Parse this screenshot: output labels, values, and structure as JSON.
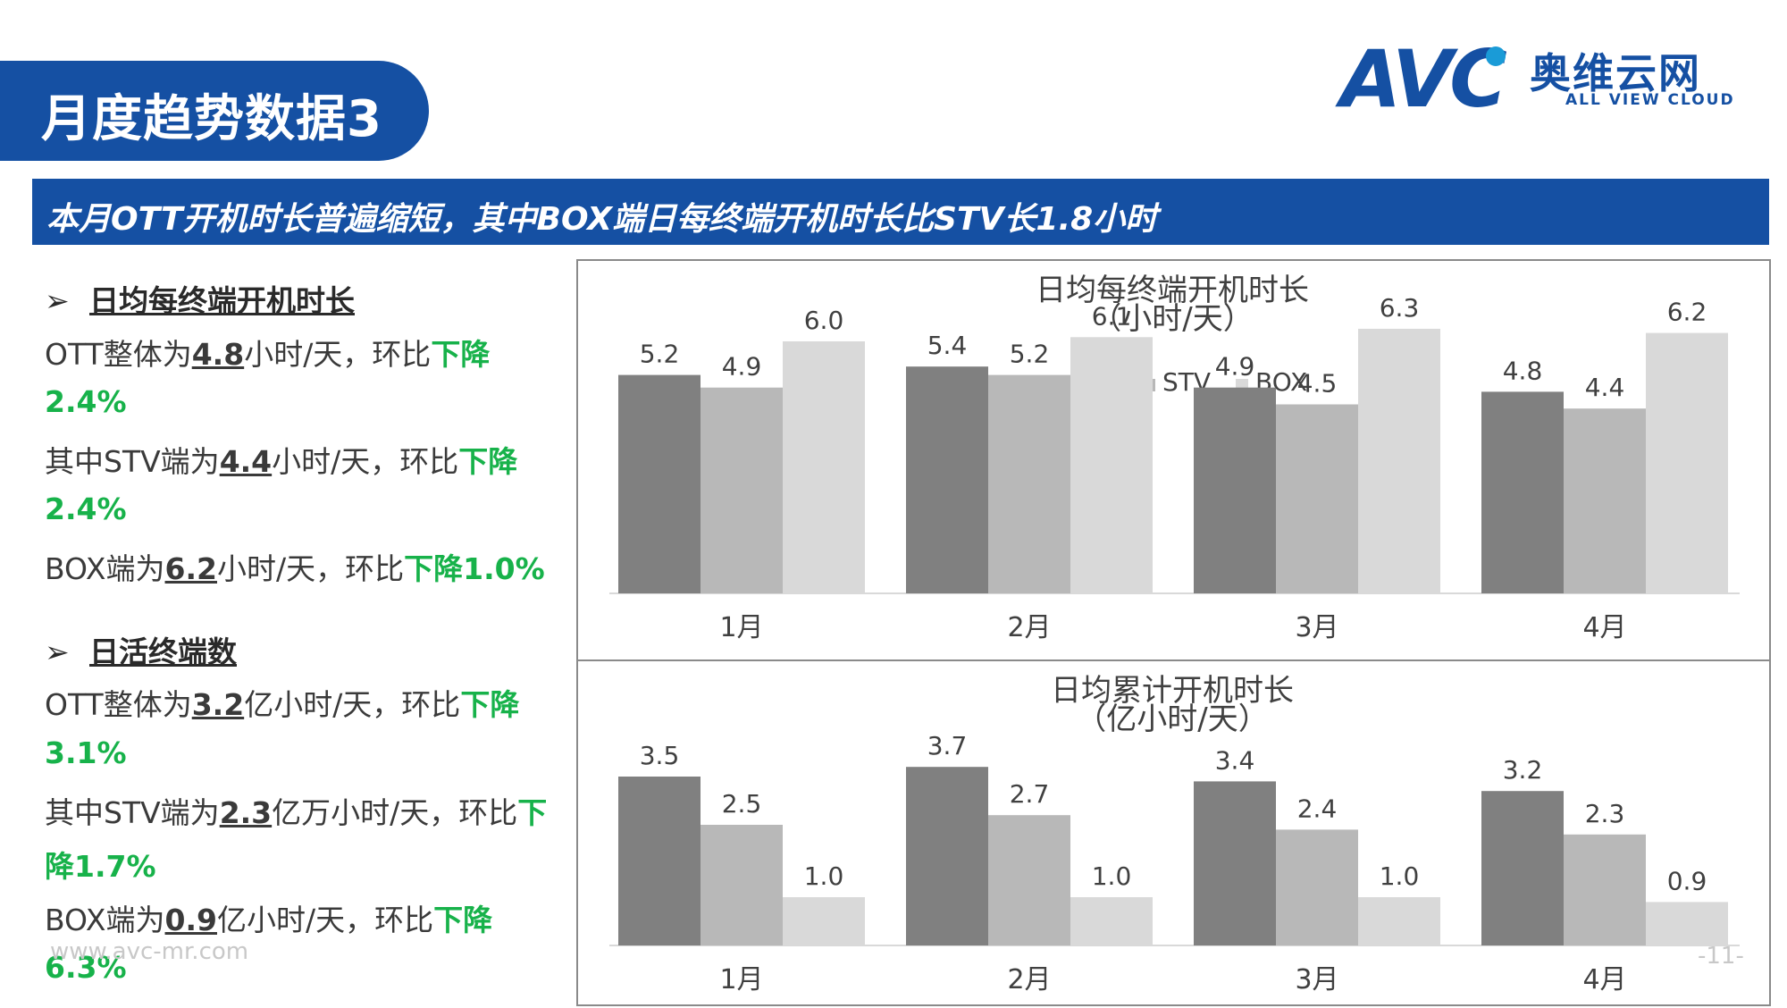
{
  "header": {
    "title": "月度趋势数据3",
    "banner": "本月OTT开机时长普遍缩短，其中BOX端日每终端开机时长比STV长1.8小时"
  },
  "logo": {
    "wordmark": "AVC",
    "cn": "奥维云网",
    "en": "ALL VIEW CLOUD"
  },
  "left_panel": {
    "section1": {
      "arrow": "➢",
      "heading": "日均每终端开机时长",
      "l1_a": "OTT整体为",
      "l1_num": "4.8",
      "l1_b": "小时/天，环比",
      "l1_c": "下降",
      "l2": "2.4%",
      "l3_a": "其中STV端为",
      "l3_num": "4.4",
      "l3_b": "小时/天，环比",
      "l3_c": "下降",
      "l4": "2.4%",
      "l5_a": "BOX端为",
      "l5_num": "6.2",
      "l5_b": "小时/天，环比",
      "l5_c": "下降1.0%"
    },
    "section2": {
      "arrow": "➢",
      "heading": "日活终端数",
      "l1_a": "OTT整体为",
      "l1_num": "3.2",
      "l1_b": "亿小时/天，环比",
      "l1_c": "下降",
      "l2": "3.1%",
      "l3_a": "其中STV端为",
      "l3_num": "2.3",
      "l3_b": "亿万小时/天，环比",
      "l3_c": "下",
      "l4": "降1.7%",
      "l5_a": "BOX端为",
      "l5_num": "0.9",
      "l5_b": "亿小时/天，环比",
      "l5_c": "下降",
      "l6": "6.3%"
    }
  },
  "footer": {
    "url": "www.avc-mr.com",
    "page": "-11-"
  },
  "colors": {
    "brand_blue": "#1550a3",
    "green": "#17b24a",
    "ott": "#808080",
    "stv": "#b8b8b8",
    "box": "#d9d9d9"
  },
  "chart_data": [
    {
      "type": "bar",
      "title": "日均每终端开机时长",
      "subtitle": "（小时/天）",
      "categories": [
        "1月",
        "2月",
        "3月",
        "4月"
      ],
      "series": [
        {
          "name": "OTT",
          "values": [
            5.2,
            5.4,
            4.9,
            4.8
          ]
        },
        {
          "name": "STV",
          "values": [
            4.9,
            5.2,
            4.5,
            4.4
          ]
        },
        {
          "name": "BOX",
          "values": [
            6.0,
            6.1,
            6.3,
            6.2
          ]
        }
      ],
      "legend": "top",
      "grid": false
    },
    {
      "type": "bar",
      "title": "日均累计开机时长",
      "subtitle": "（亿小时/天）",
      "categories": [
        "1月",
        "2月",
        "3月",
        "4月"
      ],
      "series": [
        {
          "name": "OTT",
          "values": [
            3.5,
            3.7,
            3.4,
            3.2
          ]
        },
        {
          "name": "STV",
          "values": [
            2.5,
            2.7,
            2.4,
            2.3
          ]
        },
        {
          "name": "BOX",
          "values": [
            1.0,
            1.0,
            1.0,
            0.9
          ]
        }
      ],
      "legend": "none",
      "grid": false
    }
  ]
}
